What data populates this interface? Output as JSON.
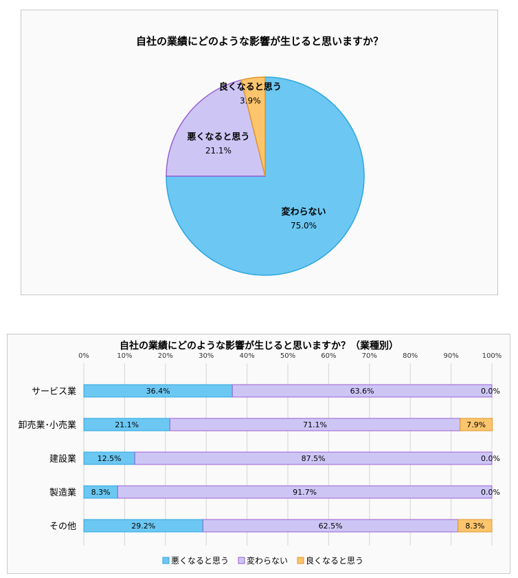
{
  "charts": {
    "pie": {
      "title": "自社の業績にどのような影響が生じると思いますか？"
    },
    "bar": {
      "title": "自社の業績にどのような影響が生じると思いますか？（業種別）"
    }
  },
  "chart_data": [
    {
      "type": "pie",
      "title": "自社の業績にどのような影響が生じると思いますか？",
      "slices": [
        {
          "label": "変わらない",
          "value": 75.0,
          "display": "75.0%",
          "color": "#6cc7f2",
          "stroke": "#2aa7e0"
        },
        {
          "label": "悪くなると思う",
          "value": 21.1,
          "display": "21.1%",
          "color": "#cdc6f5",
          "stroke": "#9a5fd0"
        },
        {
          "label": "良くなると思う",
          "value": 3.9,
          "display": "3.9%",
          "color": "#fbc56d",
          "stroke": "#e2962a"
        }
      ]
    },
    {
      "type": "bar",
      "orientation": "horizontal",
      "stacked": "percent",
      "title": "自社の業績にどのような影響が生じると思いますか？（業種別）",
      "categories": [
        "サービス業",
        "卸売業･小売業",
        "建設業",
        "製造業",
        "その他"
      ],
      "series": [
        {
          "name": "悪くなると思う",
          "color": "#6cc7f2",
          "stroke": "#2aa7e0",
          "values": [
            36.4,
            21.1,
            12.5,
            8.3,
            29.2
          ],
          "labels": [
            "36.4%",
            "21.1%",
            "12.5%",
            "8.3%",
            "29.2%"
          ]
        },
        {
          "name": "変わらない",
          "color": "#cdc6f5",
          "stroke": "#9a5fd0",
          "values": [
            63.6,
            71.1,
            87.5,
            91.7,
            62.5
          ],
          "labels": [
            "63.6%",
            "71.1%",
            "87.5%",
            "91.7%",
            "62.5%"
          ]
        },
        {
          "name": "良くなると思う",
          "color": "#fbc56d",
          "stroke": "#e2962a",
          "values": [
            0.0,
            7.9,
            0.0,
            0.0,
            8.3
          ],
          "labels": [
            "0.0%",
            "7.9%",
            "0.0%",
            "0.0%",
            "8.3%"
          ]
        }
      ],
      "xlim": [
        0,
        100
      ],
      "xticks": [
        "0%",
        "10%",
        "20%",
        "30%",
        "40%",
        "50%",
        "60%",
        "70%",
        "80%",
        "90%",
        "100%"
      ],
      "grid": true,
      "legend_position": "bottom"
    }
  ]
}
